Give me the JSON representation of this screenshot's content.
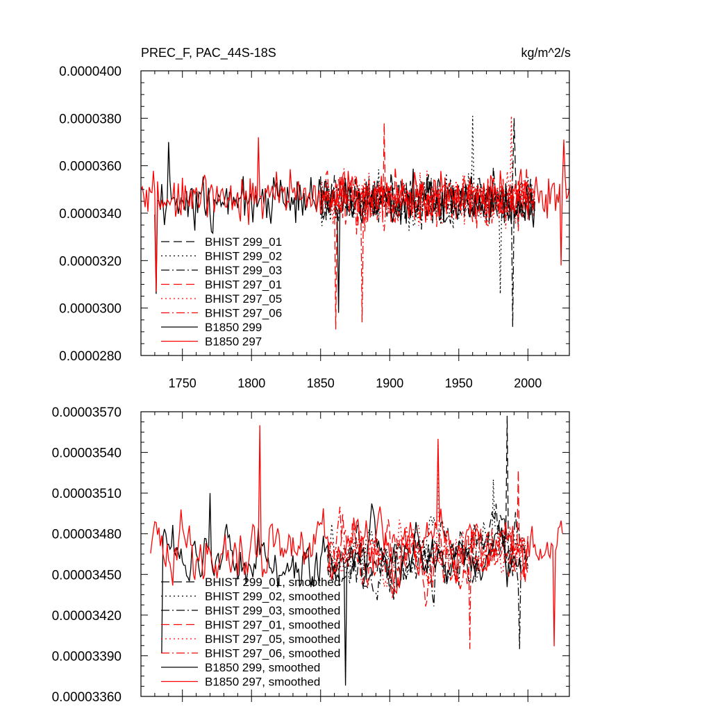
{
  "colors": {
    "black": "#000000",
    "red": "#ff0000",
    "frame": "#000000"
  },
  "chart_data": [
    {
      "type": "line",
      "title": "PREC_F, PAC_44S-18S",
      "units": "kg/m^2/s",
      "xlabel": "",
      "ylabel": "",
      "xlim": [
        1720,
        2030
      ],
      "ylim": [
        2.8e-05,
        4e-05
      ],
      "x_ticks": [
        1750,
        1800,
        1850,
        1900,
        1950,
        2000
      ],
      "x_tick_labels": [
        "1750",
        "1800",
        "1850",
        "1900",
        "1950",
        "2000"
      ],
      "y_ticks": [
        2.8e-05,
        3e-05,
        3.2e-05,
        3.4e-05,
        3.6e-05,
        3.8e-05,
        4e-05
      ],
      "y_tick_labels": [
        "0.0000280",
        "0.0000300",
        "0.0000320",
        "0.0000340",
        "0.0000360",
        "0.0000380",
        "0.0000400"
      ],
      "legend_position": "bottom-left",
      "series": [
        {
          "name": "BHIST 299_01",
          "color": "#000000",
          "dash": "long",
          "start": 1850,
          "end": 2005,
          "seed": 11,
          "mean": 3.46e-05,
          "amp": 1.6e-06,
          "spikes": [
            [
              1990,
              3.8e-05
            ]
          ]
        },
        {
          "name": "BHIST 299_02",
          "color": "#000000",
          "dash": "dot",
          "start": 1850,
          "end": 2005,
          "seed": 12,
          "mean": 3.46e-05,
          "amp": 1.6e-06,
          "spikes": [
            [
              1960,
              3.81e-05
            ],
            [
              1980,
              3.06e-05
            ]
          ]
        },
        {
          "name": "BHIST 299_03",
          "color": "#000000",
          "dash": "dashdot",
          "start": 1850,
          "end": 2005,
          "seed": 13,
          "mean": 3.45e-05,
          "amp": 1.6e-06,
          "spikes": [
            [
              1989,
              2.92e-05
            ]
          ]
        },
        {
          "name": "BHIST 297_01",
          "color": "#ff0000",
          "dash": "long",
          "start": 1850,
          "end": 2005,
          "seed": 14,
          "mean": 3.46e-05,
          "amp": 1.6e-06,
          "spikes": [
            [
              1896,
              3.78e-05
            ],
            [
              1861,
              2.91e-05
            ]
          ]
        },
        {
          "name": "BHIST 297_05",
          "color": "#ff0000",
          "dash": "dot",
          "start": 1850,
          "end": 2005,
          "seed": 15,
          "mean": 3.46e-05,
          "amp": 1.6e-06,
          "spikes": [
            [
              1988,
              3.81e-05
            ]
          ]
        },
        {
          "name": "BHIST 297_06",
          "color": "#ff0000",
          "dash": "dashdot",
          "start": 1850,
          "end": 2005,
          "seed": 16,
          "mean": 3.46e-05,
          "amp": 1.6e-06,
          "spikes": [
            [
              1880,
              2.94e-05
            ]
          ]
        },
        {
          "name": "B1850 299",
          "color": "#000000",
          "dash": "solid",
          "start": 1730,
          "end": 2005,
          "seed": 17,
          "mean": 3.45e-05,
          "amp": 1.5e-06,
          "spikes": [
            [
              1740,
              3.7e-05
            ],
            [
              1731,
              3.06e-05
            ],
            [
              1863,
              2.98e-05
            ]
          ]
        },
        {
          "name": "B1850 297",
          "color": "#ff0000",
          "dash": "solid",
          "start": 1720,
          "end": 2030,
          "seed": 18,
          "mean": 3.47e-05,
          "amp": 1.4e-06,
          "spikes": [
            [
              1805,
              3.72e-05
            ],
            [
              2026,
              3.71e-05
            ],
            [
              2024,
              3.18e-05
            ],
            [
              1731,
              3.07e-05
            ]
          ]
        }
      ]
    },
    {
      "type": "line",
      "title": "",
      "xlabel": "",
      "ylabel": "",
      "xlim": [
        1720,
        2030
      ],
      "ylim": [
        3.36e-05,
        3.57e-05
      ],
      "x_ticks": [
        1750,
        1800,
        1850,
        1900,
        1950,
        2000
      ],
      "x_tick_labels": [],
      "y_ticks": [
        3.36e-05,
        3.39e-05,
        3.42e-05,
        3.45e-05,
        3.48e-05,
        3.51e-05,
        3.54e-05,
        3.57e-05
      ],
      "y_tick_labels": [
        "0.00003360",
        "0.00003390",
        "0.00003420",
        "0.00003450",
        "0.00003480",
        "0.00003510",
        "0.00003540",
        "0.00003570"
      ],
      "legend_position": "bottom-left",
      "series": [
        {
          "name": "BHIST 299_01, smoothed",
          "color": "#000000",
          "dash": "long",
          "start": 1855,
          "end": 2000,
          "seed": 21,
          "mean": 3.465e-05,
          "amp": 4.5e-07,
          "spikes": [
            [
              1985,
              3.567e-05
            ]
          ]
        },
        {
          "name": "BHIST 299_02, smoothed",
          "color": "#000000",
          "dash": "dot",
          "start": 1855,
          "end": 2000,
          "seed": 22,
          "mean": 3.47e-05,
          "amp": 4.5e-07,
          "spikes": [
            [
              1975,
              3.52e-05
            ]
          ]
        },
        {
          "name": "BHIST 299_03, smoothed",
          "color": "#000000",
          "dash": "dashdot",
          "start": 1855,
          "end": 2000,
          "seed": 23,
          "mean": 3.462e-05,
          "amp": 4.5e-07,
          "spikes": [
            [
              1994,
              3.395e-05
            ]
          ]
        },
        {
          "name": "BHIST 297_01, smoothed",
          "color": "#ff0000",
          "dash": "long",
          "start": 1855,
          "end": 2000,
          "seed": 24,
          "mean": 3.465e-05,
          "amp": 4.5e-07,
          "spikes": [
            [
              1993,
              3.527e-05
            ]
          ]
        },
        {
          "name": "BHIST 297_05, smoothed",
          "color": "#ff0000",
          "dash": "dot",
          "start": 1855,
          "end": 2000,
          "seed": 25,
          "mean": 3.468e-05,
          "amp": 4.5e-07,
          "spikes": [
            [
              1935,
              3.548e-05
            ]
          ]
        },
        {
          "name": "BHIST 297_06, smoothed",
          "color": "#ff0000",
          "dash": "dashdot",
          "start": 1855,
          "end": 2000,
          "seed": 26,
          "mean": 3.462e-05,
          "amp": 4.5e-07,
          "spikes": [
            [
              1958,
              3.395e-05
            ]
          ]
        },
        {
          "name": "B1850 299, smoothed",
          "color": "#000000",
          "dash": "solid",
          "start": 1735,
          "end": 1995,
          "seed": 27,
          "mean": 3.462e-05,
          "amp": 4.5e-07,
          "spikes": [
            [
              1770,
              3.51e-05
            ],
            [
              1735,
              3.392e-05
            ],
            [
              1868,
              3.368e-05
            ]
          ]
        },
        {
          "name": "B1850 297, smoothed",
          "color": "#ff0000",
          "dash": "solid",
          "start": 1727,
          "end": 2025,
          "seed": 28,
          "mean": 3.468e-05,
          "amp": 4.5e-07,
          "spikes": [
            [
              1806,
              3.56e-05
            ],
            [
              1935,
              3.55e-05
            ],
            [
              2019,
              3.397e-05
            ]
          ]
        }
      ]
    }
  ]
}
